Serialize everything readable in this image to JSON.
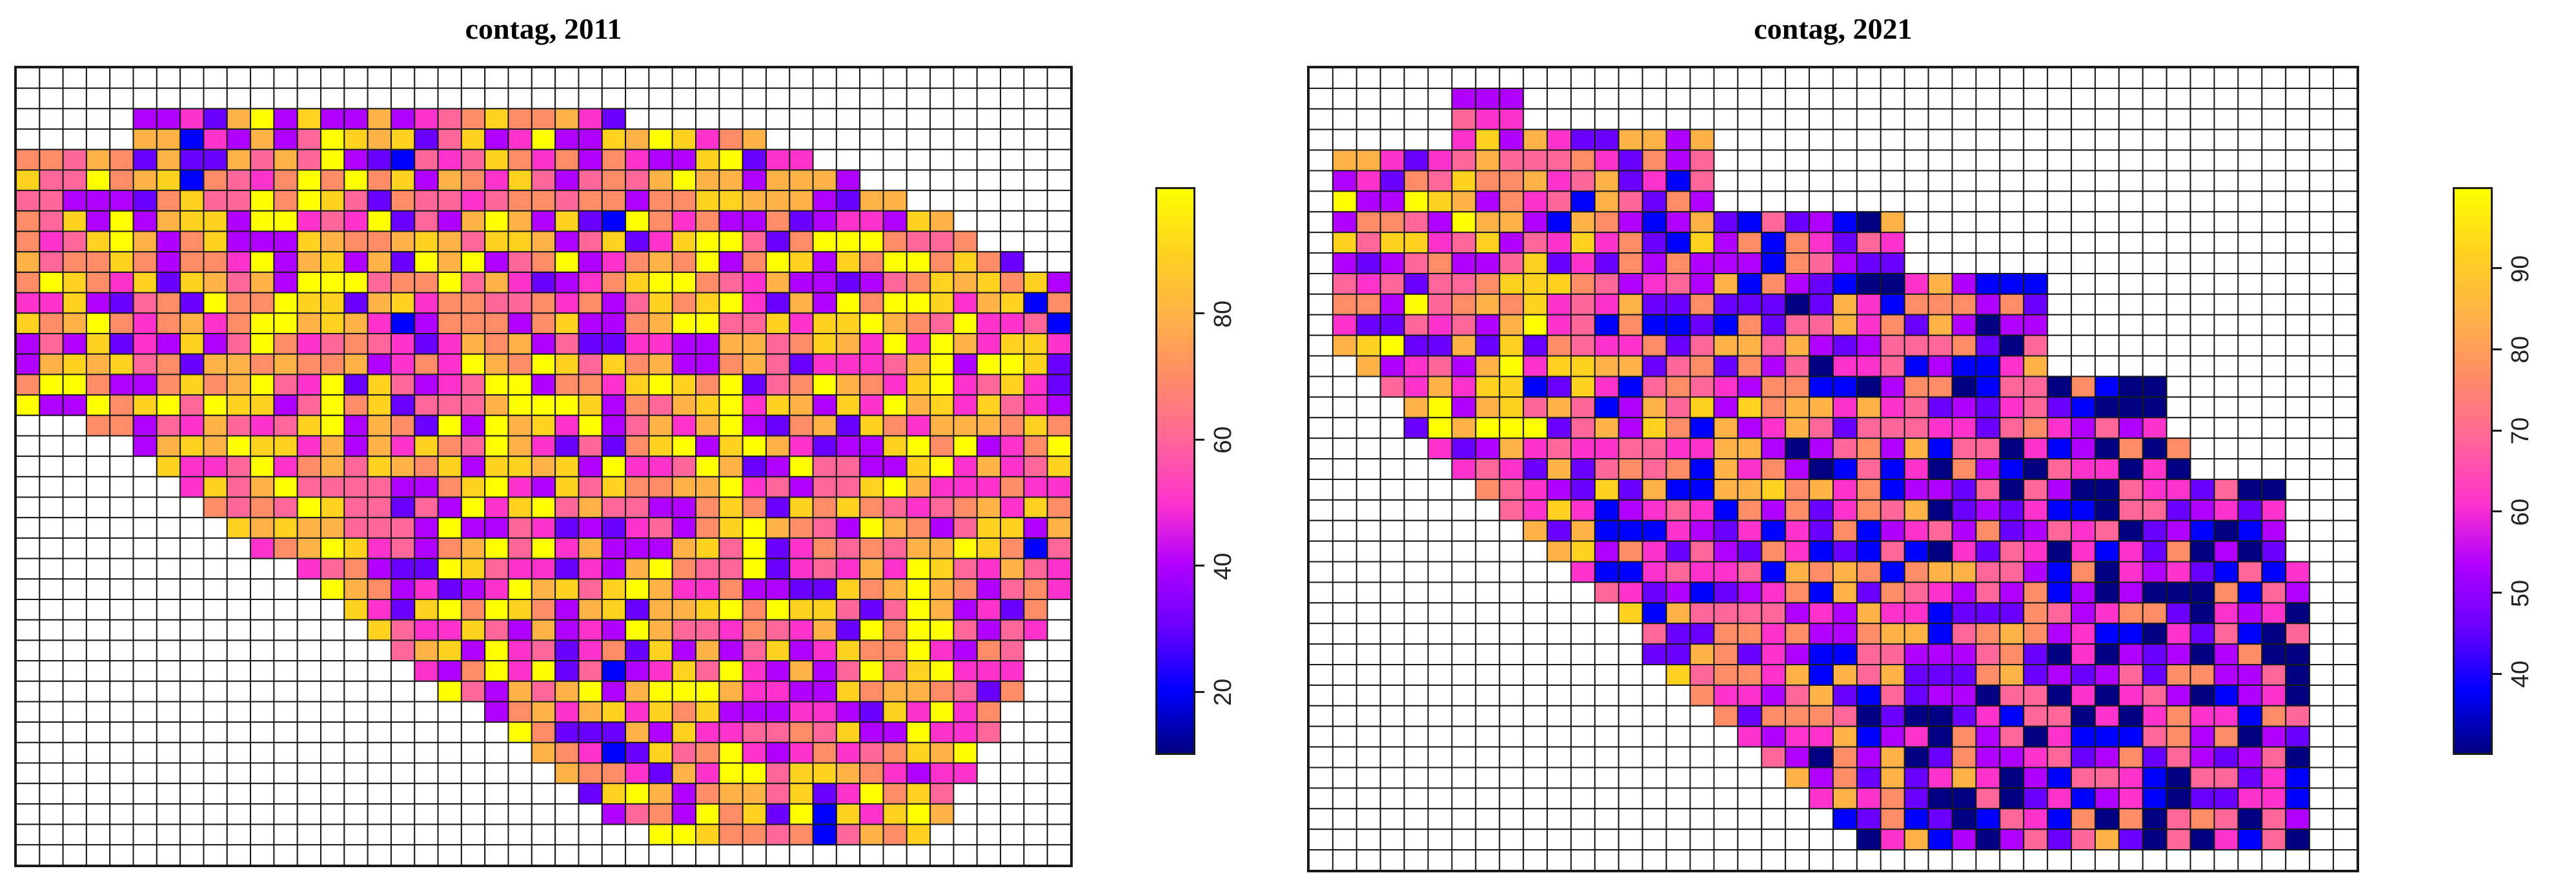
{
  "panels": [
    {
      "title": "contag, 2011",
      "legend": {
        "min": 10,
        "max": 100,
        "ticks": [
          "20",
          "40",
          "60",
          "80"
        ],
        "tick_values": [
          20,
          40,
          60,
          80
        ]
      },
      "grid": {
        "cols": 45,
        "rows": 39
      }
    },
    {
      "title": "contag, 2021",
      "legend": {
        "min": 30,
        "max": 100,
        "ticks": [
          "40",
          "50",
          "60",
          "70",
          "80",
          "90"
        ],
        "tick_values": [
          40,
          50,
          60,
          70,
          80,
          90
        ]
      },
      "grid": {
        "cols": 44,
        "rows": 39
      }
    }
  ],
  "colors": {
    "palette_low_to_high": [
      "#000080",
      "#0000ff",
      "#6a00ff",
      "#b000ff",
      "#ff33cc",
      "#ff6699",
      "#ff8c66",
      "#ffb347",
      "#ffd21f",
      "#ffff00"
    ],
    "grid_line": "#1a1a1a",
    "empty_cell": "#ffffff"
  }
}
